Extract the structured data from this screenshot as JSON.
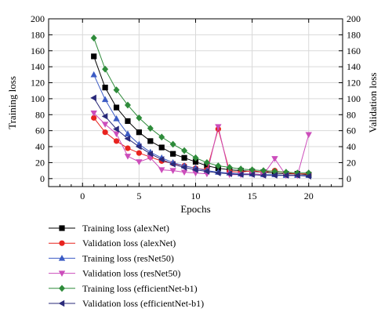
{
  "chart_data": {
    "type": "line",
    "title": "",
    "xlabel": "Epochs",
    "ylabel": "Training loss",
    "ylabel_right": "Validation loss",
    "xlim": [
      -3,
      23
    ],
    "ylim": [
      -10,
      200
    ],
    "ylim_right": [
      -10,
      200
    ],
    "x_ticks": [
      0,
      5,
      10,
      15,
      20
    ],
    "y_ticks": [
      0,
      20,
      40,
      60,
      80,
      100,
      120,
      140,
      160,
      180,
      200
    ],
    "y_ticks_right": [
      0,
      20,
      40,
      60,
      80,
      100,
      120,
      140,
      160,
      180,
      200
    ],
    "grid": true,
    "legend_position": "bottom",
    "series": [
      {
        "name": "Training loss (alexNet)",
        "color": "#000000",
        "marker": "square",
        "x": [
          1,
          2,
          3,
          4,
          5,
          6,
          7,
          8,
          9,
          10,
          11,
          12,
          13,
          14,
          15,
          16,
          17,
          18,
          19,
          20
        ],
        "values": [
          153,
          114,
          89,
          72,
          58,
          47,
          39,
          31,
          26,
          21,
          16,
          13,
          11,
          10,
          9,
          8,
          7,
          6,
          6,
          5
        ]
      },
      {
        "name": "Validation loss (alexNet)",
        "color": "#e8231f",
        "marker": "circle",
        "x": [
          1,
          2,
          3,
          4,
          5,
          6,
          7,
          8,
          9,
          10,
          11,
          12,
          13,
          14,
          15,
          16,
          17,
          18,
          19,
          20
        ],
        "values": [
          76,
          58,
          47,
          38,
          32,
          27,
          22,
          19,
          16,
          13,
          11,
          62,
          9,
          8,
          10,
          8,
          10,
          7,
          6,
          6
        ]
      },
      {
        "name": "Training loss (resNet50)",
        "color": "#3b5bc4",
        "marker": "triangle-up",
        "x": [
          1,
          2,
          3,
          4,
          5,
          6,
          7,
          8,
          9,
          10,
          11,
          12,
          13,
          14,
          15,
          16,
          17,
          18,
          19,
          20
        ],
        "values": [
          130,
          99,
          75,
          56,
          43,
          33,
          26,
          20,
          16,
          13,
          10,
          8,
          7,
          6,
          6,
          5,
          5,
          4,
          4,
          4
        ]
      },
      {
        "name": "Validation loss (resNet50)",
        "color": "#cc4dbb",
        "marker": "triangle-down",
        "x": [
          1,
          2,
          3,
          4,
          5,
          6,
          7,
          8,
          9,
          10,
          11,
          12,
          13,
          14,
          15,
          16,
          17,
          18,
          19,
          20
        ],
        "values": [
          82,
          68,
          56,
          28,
          21,
          26,
          11,
          10,
          8,
          7,
          6,
          65,
          5,
          5,
          6,
          5,
          25,
          4,
          4,
          55
        ]
      },
      {
        "name": "Training loss (efficientNet-b1)",
        "color": "#2e8b3a",
        "marker": "diamond",
        "x": [
          1,
          2,
          3,
          4,
          5,
          6,
          7,
          8,
          9,
          10,
          11,
          12,
          13,
          14,
          15,
          16,
          17,
          18,
          19,
          20
        ],
        "values": [
          176,
          137,
          111,
          92,
          76,
          63,
          52,
          43,
          35,
          26,
          20,
          16,
          14,
          12,
          11,
          10,
          9,
          8,
          7,
          7
        ]
      },
      {
        "name": "Validation loss (efficientNet-b1)",
        "color": "#2a2a7a",
        "marker": "triangle-left",
        "x": [
          1,
          2,
          3,
          4,
          5,
          6,
          7,
          8,
          9,
          10,
          11,
          12,
          13,
          14,
          15,
          16,
          17,
          18,
          19,
          20
        ],
        "values": [
          101,
          78,
          62,
          50,
          40,
          31,
          24,
          18,
          14,
          11,
          9,
          7,
          6,
          5,
          5,
          4,
          4,
          4,
          4,
          3
        ]
      }
    ]
  }
}
